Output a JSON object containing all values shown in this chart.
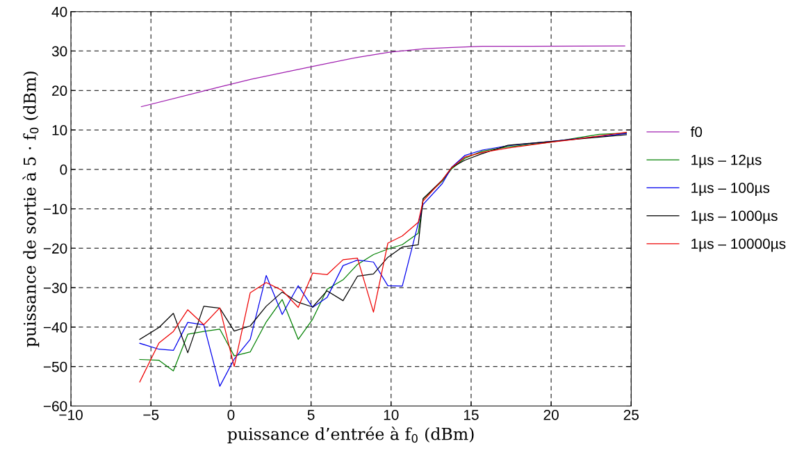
{
  "chart_data": {
    "type": "line",
    "xlabel": "puissance d’entrée à f$_{0}$ (dBm)",
    "ylabel": "puissance de sortie à 5 · f$_{0}$ (dBm)",
    "xlim": [
      -10,
      25
    ],
    "ylim": [
      -60,
      40
    ],
    "xticks": [
      {
        "value": -10,
        "label": "−10"
      },
      {
        "value": -5,
        "label": "−5"
      },
      0,
      5,
      10,
      15,
      20,
      25
    ],
    "yticks": [
      {
        "value": -60,
        "label": "−60"
      },
      {
        "value": -50,
        "label": "−50"
      },
      {
        "value": -40,
        "label": "−40"
      },
      {
        "value": -30,
        "label": "−30"
      },
      {
        "value": -20,
        "label": "−20"
      },
      {
        "value": -10,
        "label": "−10"
      },
      0,
      10,
      20,
      30,
      40
    ],
    "grid": true,
    "legend": "right",
    "line_style": "solid",
    "marker": "none",
    "series": [
      {
        "name": "f0",
        "color": "#a020b0",
        "x": [
          -5.6,
          -0.7,
          1.3,
          5.0,
          7.9,
          9.9,
          12.1,
          13.8,
          15.7,
          17.5,
          24.6
        ],
        "values": [
          15.9,
          20.9,
          22.9,
          26.0,
          28.4,
          29.7,
          30.6,
          30.9,
          31.2,
          31.2,
          31.3
        ]
      },
      {
        "name": "1µs – 12µs",
        "color": "#008000",
        "x": [
          -5.7,
          -4.5,
          -3.6,
          -2.7,
          -1.7,
          -0.7,
          0.2,
          1.2,
          2.2,
          3.2,
          4.2,
          5.1,
          6.0,
          7.0,
          7.9,
          8.9,
          9.8,
          10.7,
          11.7,
          12.0,
          13.2,
          13.8,
          14.6,
          15.7,
          17.3,
          20.0,
          23.0,
          24.7
        ],
        "values": [
          -48.2,
          -48.4,
          -51.1,
          -41.8,
          -41.1,
          -40.5,
          -47.3,
          -46.3,
          -38.7,
          -33.0,
          -43.1,
          -38.0,
          -30.4,
          -28.0,
          -24.1,
          -21.6,
          -20.2,
          -19.1,
          -16.2,
          -7.5,
          -3.0,
          0.2,
          2.8,
          4.6,
          5.7,
          6.9,
          8.9,
          9.2
        ]
      },
      {
        "name": "1µs – 100µs",
        "color": "#0000ee",
        "x": [
          -5.7,
          -4.5,
          -3.6,
          -2.7,
          -1.7,
          -0.7,
          0.2,
          1.2,
          2.2,
          3.2,
          4.2,
          5.1,
          6.0,
          7.0,
          7.9,
          8.9,
          9.8,
          10.7,
          12.0,
          13.2,
          13.8,
          14.6,
          15.7,
          17.3,
          20.0,
          24.7
        ],
        "values": [
          -44.1,
          -45.6,
          -45.9,
          -38.8,
          -39.4,
          -55.0,
          -48.1,
          -43.1,
          -26.9,
          -36.8,
          -29.5,
          -35.0,
          -32.5,
          -24.4,
          -23.0,
          -23.5,
          -29.5,
          -29.6,
          -8.9,
          -3.6,
          0.6,
          3.5,
          4.9,
          6.0,
          7.1,
          9.1
        ]
      },
      {
        "name": "1µs – 1000µs",
        "color": "#000000",
        "x": [
          -5.7,
          -4.5,
          -3.6,
          -2.7,
          -1.7,
          -0.7,
          0.2,
          1.2,
          2.2,
          3.2,
          4.2,
          5.1,
          6.0,
          7.0,
          7.9,
          8.9,
          9.8,
          10.7,
          11.7,
          12.0,
          13.2,
          13.8,
          14.6,
          15.7,
          17.3,
          20.0,
          24.7
        ],
        "values": [
          -43.1,
          -40.1,
          -36.5,
          -46.5,
          -34.7,
          -35.2,
          -41.0,
          -39.7,
          -34.7,
          -31.1,
          -33.7,
          -34.9,
          -30.8,
          -33.3,
          -27.1,
          -26.5,
          -22.3,
          -19.7,
          -19.1,
          -7.4,
          -2.7,
          0.5,
          2.3,
          4.0,
          6.1,
          7.1,
          8.8
        ]
      },
      {
        "name": "1µs – 10000µs",
        "color": "#ee0000",
        "x": [
          -5.7,
          -4.5,
          -3.6,
          -2.7,
          -1.7,
          -0.7,
          0.2,
          1.2,
          2.2,
          3.2,
          4.2,
          5.1,
          6.0,
          7.0,
          7.9,
          8.9,
          9.8,
          10.7,
          11.7,
          12.0,
          13.2,
          13.8,
          14.6,
          15.7,
          17.3,
          20.0,
          21.3,
          24.7
        ],
        "values": [
          -53.9,
          -44.0,
          -41.1,
          -35.6,
          -39.4,
          -35.1,
          -50.0,
          -31.3,
          -28.7,
          -30.7,
          -35.0,
          -26.3,
          -26.7,
          -22.9,
          -22.5,
          -36.2,
          -18.7,
          -16.9,
          -13.4,
          -8.0,
          -2.7,
          0.5,
          3.1,
          4.3,
          5.4,
          6.9,
          7.5,
          9.4
        ]
      }
    ]
  }
}
